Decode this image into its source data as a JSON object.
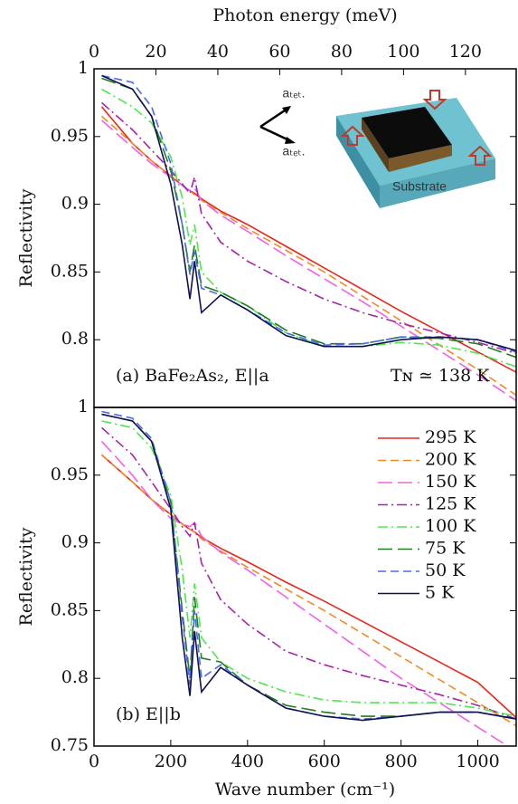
{
  "chart_data": [
    {
      "type": "line",
      "label": "(a) BaFe₂As₂, E||a",
      "annotation": "Tɴ ≃ 138 K",
      "x2label": "Photon energy (meV)",
      "x2lim": [
        0,
        136.4
      ],
      "x2ticks": [
        0,
        20,
        40,
        60,
        80,
        100,
        120
      ],
      "ylabel": "Reflectivity",
      "xlim": [
        0,
        1100
      ],
      "ylim": [
        0.75,
        1
      ],
      "yticks": [
        0.8,
        0.85,
        0.9,
        0.95,
        1
      ],
      "inset": {
        "labels": [
          "aₜₑₜ.",
          "aₜₑₜ.",
          "Substrate"
        ]
      },
      "x": [
        20,
        100,
        150,
        200,
        230,
        250,
        262,
        280,
        330,
        400,
        500,
        600,
        700,
        800,
        900,
        1000,
        1100
      ],
      "series": [
        {
          "color": "#e8261a",
          "dash": "solid",
          "values": [
            0.972,
            0.945,
            0.932,
            0.921,
            0.914,
            0.91,
            0.908,
            0.904,
            0.895,
            0.885,
            0.869,
            0.853,
            0.837,
            0.821,
            0.806,
            0.791,
            0.776
          ]
        },
        {
          "color": "#f08a24",
          "dash": "dash",
          "values": [
            0.965,
            0.945,
            0.932,
            0.921,
            0.914,
            0.91,
            0.907,
            0.903,
            0.894,
            0.882,
            0.866,
            0.85,
            0.832,
            0.814,
            0.796,
            0.778,
            0.759
          ]
        },
        {
          "color": "#f060e8",
          "dash": "longdash",
          "values": [
            0.962,
            0.942,
            0.93,
            0.92,
            0.914,
            0.91,
            0.912,
            0.903,
            0.892,
            0.88,
            0.862,
            0.845,
            0.828,
            0.81,
            0.792,
            0.774,
            0.755
          ]
        },
        {
          "color": "#a524a8",
          "dash": "dashdot",
          "values": [
            0.975,
            0.955,
            0.94,
            0.925,
            0.915,
            0.908,
            0.92,
            0.893,
            0.872,
            0.858,
            0.843,
            0.83,
            0.82,
            0.812,
            0.805,
            0.798,
            0.79
          ]
        },
        {
          "color": "#4ee84e",
          "dash": "dashdot",
          "values": [
            0.985,
            0.972,
            0.96,
            0.935,
            0.905,
            0.87,
            0.885,
            0.85,
            0.835,
            0.825,
            0.805,
            0.795,
            0.795,
            0.798,
            0.796,
            0.79,
            0.78
          ]
        },
        {
          "color": "#237a23",
          "dash": "longdash",
          "values": [
            0.993,
            0.985,
            0.965,
            0.925,
            0.885,
            0.85,
            0.87,
            0.84,
            0.835,
            0.825,
            0.807,
            0.797,
            0.797,
            0.802,
            0.801,
            0.797,
            0.787
          ]
        },
        {
          "color": "#4a6ae6",
          "dash": "dash",
          "values": [
            0.995,
            0.99,
            0.972,
            0.93,
            0.885,
            0.848,
            0.865,
            0.838,
            0.833,
            0.822,
            0.805,
            0.796,
            0.797,
            0.802,
            0.802,
            0.8,
            0.791
          ]
        },
        {
          "color": "#10124e",
          "dash": "solid",
          "values": [
            0.995,
            0.985,
            0.965,
            0.915,
            0.87,
            0.83,
            0.858,
            0.82,
            0.833,
            0.822,
            0.803,
            0.795,
            0.795,
            0.8,
            0.802,
            0.8,
            0.792
          ]
        }
      ]
    },
    {
      "type": "line",
      "label": "(b) E||b",
      "legend": "upper right",
      "xlabel": "Wave number (cm⁻¹)",
      "xlim": [
        0,
        1100
      ],
      "xticks": [
        0,
        200,
        400,
        600,
        800,
        1000
      ],
      "ylabel": "Reflectivity",
      "ylim": [
        0.75,
        1
      ],
      "yticks": [
        0.75,
        0.8,
        0.85,
        0.9,
        0.95,
        1
      ],
      "x": [
        20,
        100,
        150,
        200,
        230,
        250,
        262,
        280,
        330,
        400,
        500,
        600,
        700,
        800,
        900,
        1000,
        1100
      ],
      "series": [
        {
          "name": "295 K",
          "color": "#e8261a",
          "dash": "solid",
          "values": [
            0.965,
            0.945,
            0.932,
            0.921,
            0.914,
            0.91,
            0.908,
            0.904,
            0.896,
            0.886,
            0.871,
            0.857,
            0.842,
            0.827,
            0.812,
            0.797,
            0.771
          ]
        },
        {
          "name": "200 K",
          "color": "#f08a24",
          "dash": "dash",
          "values": [
            0.965,
            0.945,
            0.932,
            0.921,
            0.914,
            0.91,
            0.908,
            0.903,
            0.894,
            0.882,
            0.866,
            0.85,
            0.833,
            0.816,
            0.799,
            0.782,
            0.765
          ]
        },
        {
          "name": "150 K",
          "color": "#f060e8",
          "dash": "longdash",
          "values": [
            0.975,
            0.95,
            0.932,
            0.918,
            0.914,
            0.912,
            0.915,
            0.905,
            0.893,
            0.88,
            0.86,
            0.84,
            0.82,
            0.8,
            0.782,
            0.764,
            0.746
          ]
        },
        {
          "name": "125 K",
          "color": "#a524a8",
          "dash": "dashdot",
          "values": [
            0.985,
            0.965,
            0.945,
            0.925,
            0.912,
            0.905,
            0.915,
            0.885,
            0.858,
            0.84,
            0.82,
            0.81,
            0.802,
            0.795,
            0.788,
            0.78,
            0.77
          ]
        },
        {
          "name": "100 K",
          "color": "#4ee84e",
          "dash": "dashdot",
          "values": [
            0.99,
            0.985,
            0.97,
            0.935,
            0.88,
            0.83,
            0.87,
            0.83,
            0.812,
            0.8,
            0.79,
            0.784,
            0.782,
            0.782,
            0.782,
            0.778,
            0.772
          ]
        },
        {
          "name": "75 K",
          "color": "#237a23",
          "dash": "longdash",
          "values": [
            0.995,
            0.99,
            0.975,
            0.93,
            0.85,
            0.8,
            0.86,
            0.815,
            0.812,
            0.795,
            0.78,
            0.775,
            0.772,
            0.772,
            0.775,
            0.775,
            0.77
          ]
        },
        {
          "name": "50 K",
          "color": "#4a6ae6",
          "dash": "dash",
          "values": [
            0.997,
            0.992,
            0.977,
            0.93,
            0.845,
            0.795,
            0.85,
            0.8,
            0.81,
            0.795,
            0.778,
            0.772,
            0.77,
            0.772,
            0.775,
            0.775,
            0.77
          ]
        },
        {
          "name": "5 K",
          "color": "#10124e",
          "dash": "solid",
          "values": [
            0.995,
            0.99,
            0.975,
            0.925,
            0.83,
            0.787,
            0.835,
            0.79,
            0.808,
            0.795,
            0.778,
            0.772,
            0.769,
            0.772,
            0.775,
            0.775,
            0.77
          ]
        }
      ]
    }
  ]
}
